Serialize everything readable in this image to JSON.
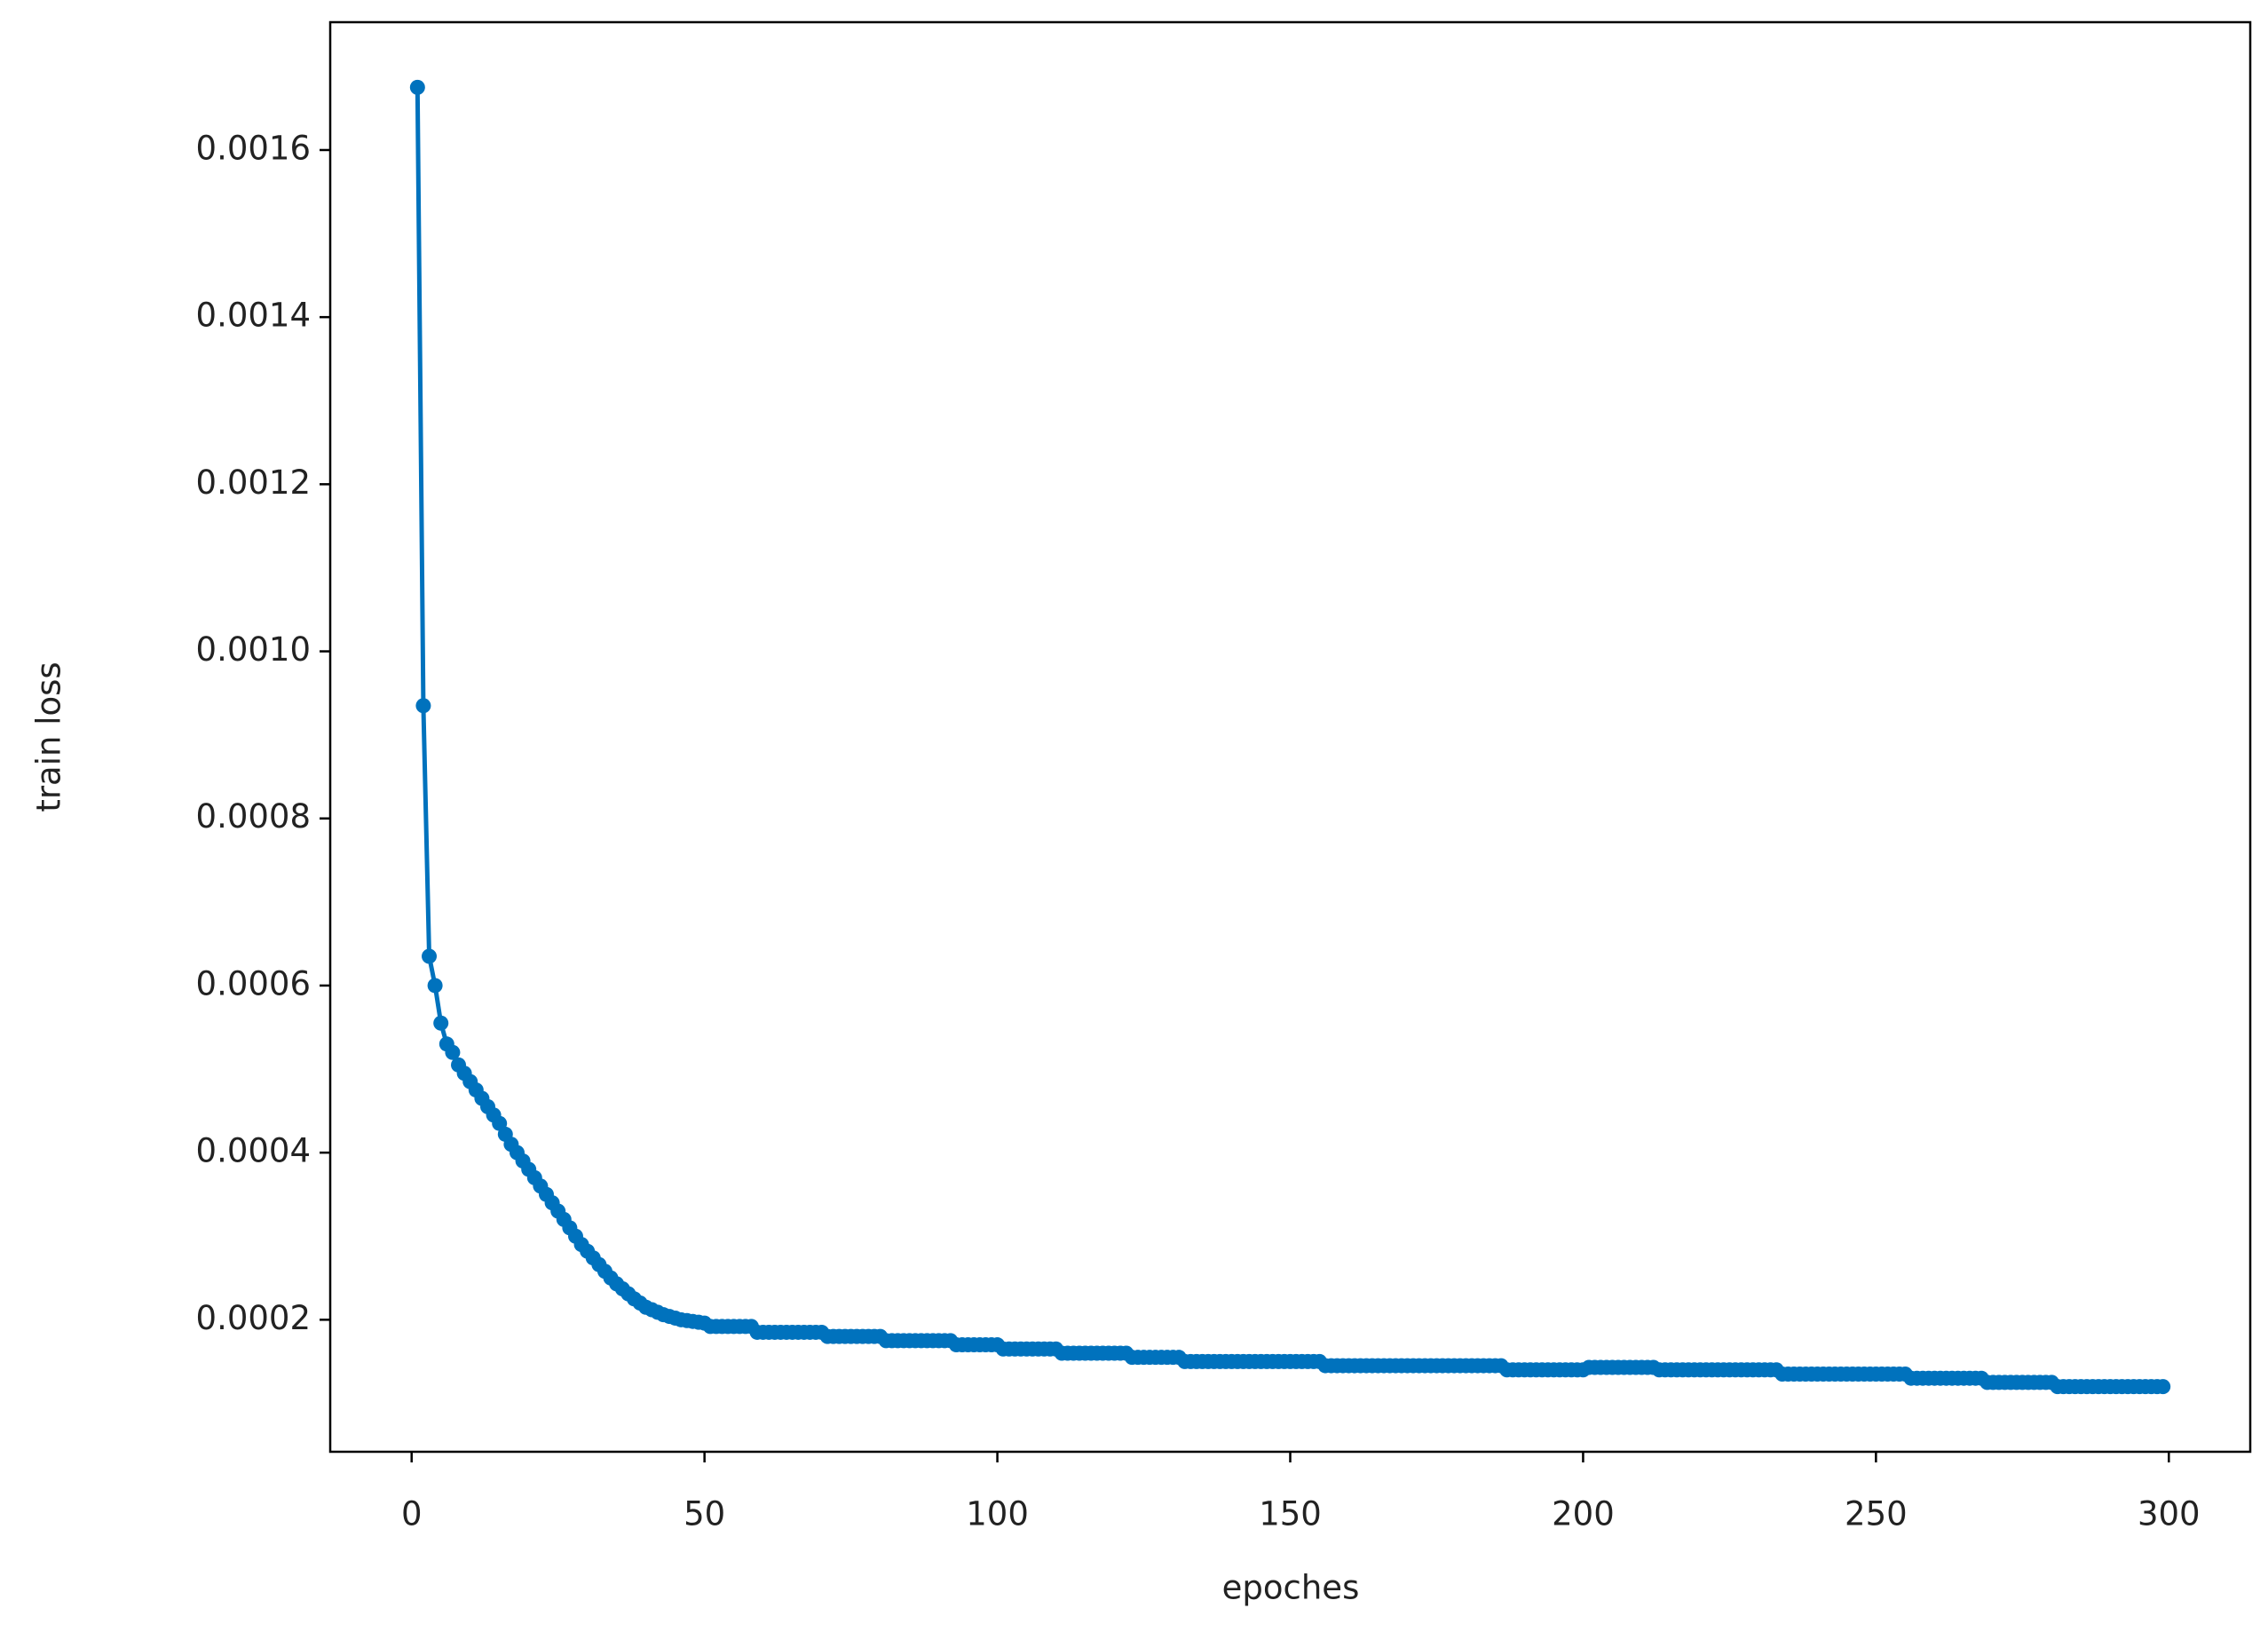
{
  "chart_data": {
    "type": "line",
    "xlabel": "epoches",
    "ylabel": "train loss",
    "color": "#0072bd",
    "marker": "circle",
    "xlim": [
      -13.9,
      313.9
    ],
    "xticks": [
      0,
      50,
      100,
      150,
      200,
      250,
      300
    ],
    "ylim": [
      4.2e-05,
      0.001753
    ],
    "yticks": [
      0.0002,
      0.0004,
      0.0006,
      0.0008,
      {
        "value": 0.001,
        "label": "0.0010"
      },
      0.0012,
      0.0014,
      0.0016
    ],
    "x": [
      1,
      2,
      3,
      4,
      5,
      6,
      7,
      8,
      9,
      10,
      11,
      12,
      13,
      14,
      15,
      16,
      17,
      18,
      19,
      20,
      21,
      22,
      23,
      24,
      25,
      26,
      27,
      28,
      29,
      30,
      31,
      32,
      33,
      34,
      35,
      36,
      37,
      38,
      39,
      40,
      41,
      42,
      43,
      44,
      45,
      46,
      47,
      48,
      49,
      50,
      51,
      52,
      53,
      54,
      55,
      56,
      57,
      58,
      59,
      60,
      61,
      62,
      63,
      64,
      65,
      66,
      67,
      68,
      69,
      70,
      71,
      72,
      73,
      74,
      75,
      76,
      77,
      78,
      79,
      80,
      81,
      82,
      83,
      84,
      85,
      86,
      87,
      88,
      89,
      90,
      91,
      92,
      93,
      94,
      95,
      96,
      97,
      98,
      99,
      100,
      101,
      102,
      103,
      104,
      105,
      106,
      107,
      108,
      109,
      110,
      111,
      112,
      113,
      114,
      115,
      116,
      117,
      118,
      119,
      120,
      121,
      122,
      123,
      124,
      125,
      126,
      127,
      128,
      129,
      130,
      131,
      132,
      133,
      134,
      135,
      136,
      137,
      138,
      139,
      140,
      141,
      142,
      143,
      144,
      145,
      146,
      147,
      148,
      149,
      150,
      151,
      152,
      153,
      154,
      155,
      156,
      157,
      158,
      159,
      160,
      161,
      162,
      163,
      164,
      165,
      166,
      167,
      168,
      169,
      170,
      171,
      172,
      173,
      174,
      175,
      176,
      177,
      178,
      179,
      180,
      181,
      182,
      183,
      184,
      185,
      186,
      187,
      188,
      189,
      190,
      191,
      192,
      193,
      194,
      195,
      196,
      197,
      198,
      199,
      200,
      201,
      202,
      203,
      204,
      205,
      206,
      207,
      208,
      209,
      210,
      211,
      212,
      213,
      214,
      215,
      216,
      217,
      218,
      219,
      220,
      221,
      222,
      223,
      224,
      225,
      226,
      227,
      228,
      229,
      230,
      231,
      232,
      233,
      234,
      235,
      236,
      237,
      238,
      239,
      240,
      241,
      242,
      243,
      244,
      245,
      246,
      247,
      248,
      249,
      250,
      251,
      252,
      253,
      254,
      255,
      256,
      257,
      258,
      259,
      260,
      261,
      262,
      263,
      264,
      265,
      266,
      267,
      268,
      269,
      270,
      271,
      272,
      273,
      274,
      275,
      276,
      277,
      278,
      279,
      280,
      281,
      282,
      283,
      284,
      285,
      286,
      287,
      288,
      289,
      290,
      291,
      292,
      293,
      294,
      295,
      296,
      297,
      298,
      299
    ],
    "values": [
      0.001675,
      0.000935,
      0.000635,
      0.0006,
      0.000555,
      0.00053,
      0.00052,
      0.000505,
      0.000495,
      0.000485,
      0.000475,
      0.000465,
      0.000455,
      0.000445,
      0.000435,
      0.000422,
      0.00041,
      0.0004,
      0.00039,
      0.00038,
      0.00037,
      0.00036,
      0.00035,
      0.00034,
      0.00033,
      0.00032,
      0.00031,
      0.0003,
      0.00029,
      0.000282,
      0.000274,
      0.000266,
      0.000258,
      0.00025,
      0.000243,
      0.000237,
      0.000231,
      0.000225,
      0.00022,
      0.000215,
      0.000212,
      0.000209,
      0.000206,
      0.000204,
      0.000202,
      0.0002,
      0.000199,
      0.000198,
      0.000197,
      0.000196,
      0.000192,
      0.000192,
      0.000192,
      0.000192,
      0.000192,
      0.000192,
      0.000192,
      0.000192,
      0.000185,
      0.000185,
      0.000185,
      0.000185,
      0.000185,
      0.000185,
      0.000185,
      0.000185,
      0.000185,
      0.000185,
      0.000185,
      0.000185,
      0.00018,
      0.00018,
      0.00018,
      0.00018,
      0.00018,
      0.00018,
      0.00018,
      0.00018,
      0.00018,
      0.00018,
      0.000175,
      0.000175,
      0.000175,
      0.000175,
      0.000175,
      0.000175,
      0.000175,
      0.000175,
      0.000175,
      0.000175,
      0.000175,
      0.000175,
      0.00017,
      0.00017,
      0.00017,
      0.00017,
      0.00017,
      0.00017,
      0.00017,
      0.00017,
      0.000165,
      0.000165,
      0.000165,
      0.000165,
      0.000165,
      0.000165,
      0.000165,
      0.000165,
      0.000165,
      0.000165,
      0.00016,
      0.00016,
      0.00016,
      0.00016,
      0.00016,
      0.00016,
      0.00016,
      0.00016,
      0.00016,
      0.00016,
      0.00016,
      0.00016,
      0.000155,
      0.000155,
      0.000155,
      0.000155,
      0.000155,
      0.000155,
      0.000155,
      0.000155,
      0.000155,
      0.00015,
      0.00015,
      0.00015,
      0.00015,
      0.00015,
      0.00015,
      0.00015,
      0.00015,
      0.00015,
      0.00015,
      0.00015,
      0.00015,
      0.00015,
      0.00015,
      0.00015,
      0.00015,
      0.00015,
      0.00015,
      0.00015,
      0.00015,
      0.00015,
      0.00015,
      0.00015,
      0.00015,
      0.000145,
      0.000145,
      0.000145,
      0.000145,
      0.000145,
      0.000145,
      0.000145,
      0.000145,
      0.000145,
      0.000145,
      0.000145,
      0.000145,
      0.000145,
      0.000145,
      0.000145,
      0.000145,
      0.000145,
      0.000145,
      0.000145,
      0.000145,
      0.000145,
      0.000145,
      0.000145,
      0.000145,
      0.000145,
      0.000145,
      0.000145,
      0.000145,
      0.000145,
      0.000145,
      0.000145,
      0.00014,
      0.00014,
      0.00014,
      0.00014,
      0.00014,
      0.00014,
      0.00014,
      0.00014,
      0.00014,
      0.00014,
      0.00014,
      0.00014,
      0.00014,
      0.00014,
      0.000143,
      0.000143,
      0.000143,
      0.000143,
      0.000143,
      0.000143,
      0.000143,
      0.000143,
      0.000143,
      0.000143,
      0.000143,
      0.000143,
      0.00014,
      0.00014,
      0.00014,
      0.00014,
      0.00014,
      0.00014,
      0.00014,
      0.00014,
      0.00014,
      0.00014,
      0.00014,
      0.00014,
      0.00014,
      0.00014,
      0.00014,
      0.00014,
      0.00014,
      0.00014,
      0.00014,
      0.00014,
      0.00014,
      0.000135,
      0.000135,
      0.000135,
      0.000135,
      0.000135,
      0.000135,
      0.000135,
      0.000135,
      0.000135,
      0.000135,
      0.000135,
      0.000135,
      0.000135,
      0.000135,
      0.000135,
      0.000135,
      0.000135,
      0.000135,
      0.000135,
      0.000135,
      0.000135,
      0.000135,
      0.00013,
      0.00013,
      0.00013,
      0.00013,
      0.00013,
      0.00013,
      0.00013,
      0.00013,
      0.00013,
      0.00013,
      0.00013,
      0.00013,
      0.00013,
      0.000125,
      0.000125,
      0.000125,
      0.000125,
      0.000125,
      0.000125,
      0.000125,
      0.000125,
      0.000125,
      0.000125,
      0.000125,
      0.000125,
      0.00012,
      0.00012,
      0.00012,
      0.00012,
      0.00012,
      0.00012,
      0.00012,
      0.00012,
      0.00012,
      0.00012,
      0.00012,
      0.00012,
      0.00012,
      0.00012,
      0.00012,
      0.00012,
      0.00012,
      0.00012,
      0.00012
    ]
  }
}
